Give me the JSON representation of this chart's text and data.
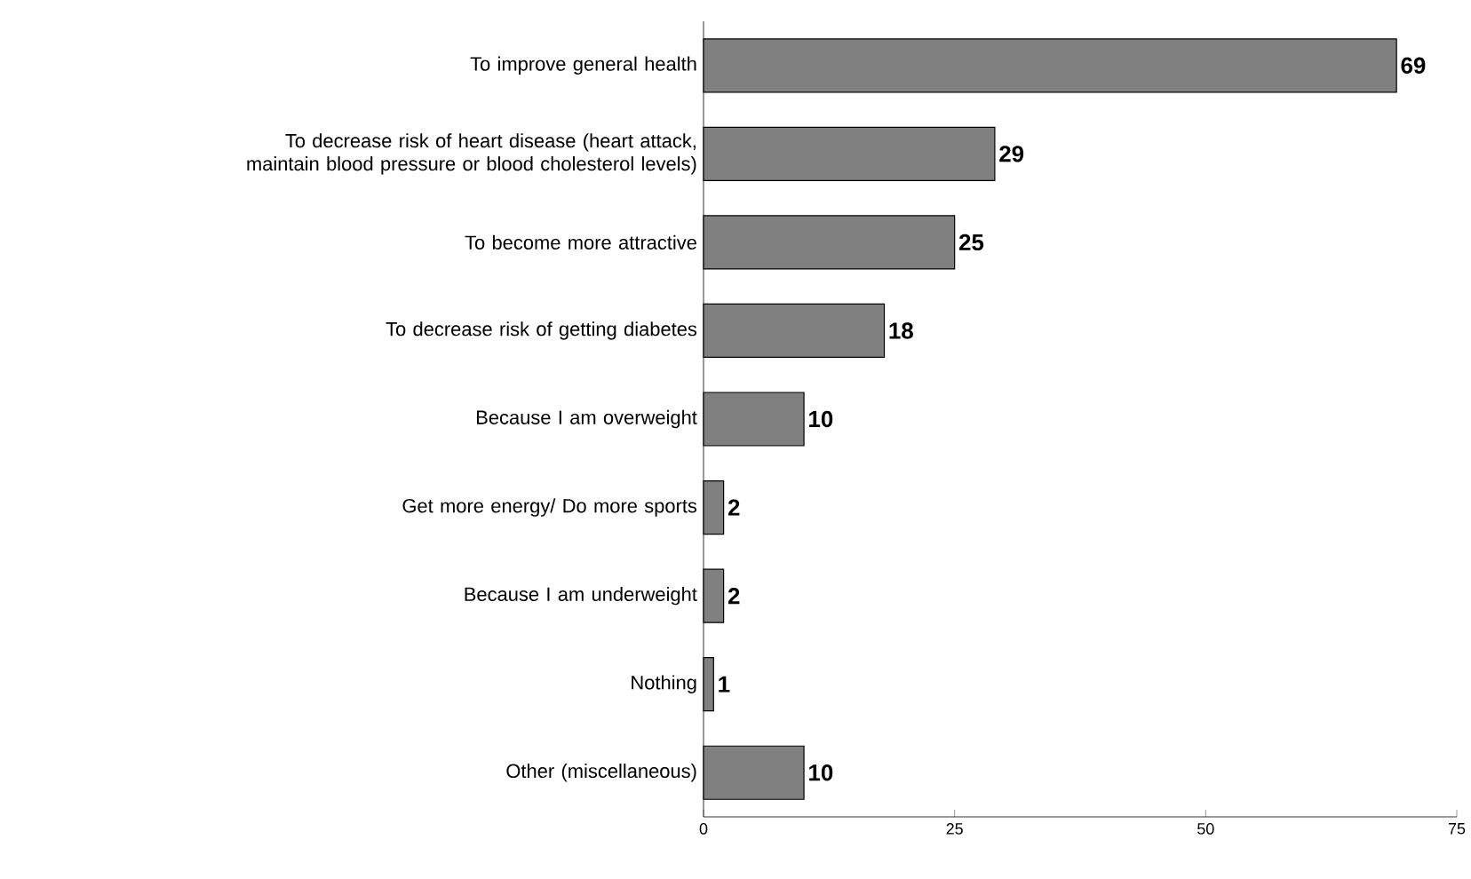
{
  "chart_data": {
    "type": "bar",
    "orientation": "horizontal",
    "categories": [
      "To improve general health",
      "To decrease risk of heart disease (heart attack, maintain blood pressure or blood cholesterol levels)",
      "To become more attractive",
      "To decrease risk of getting diabetes",
      "Because I am overweight",
      "Get more energy/ Do more sports",
      "Because I am underweight",
      "Nothing",
      "Other (miscellaneous)"
    ],
    "values": [
      69,
      29,
      25,
      18,
      10,
      2,
      2,
      1,
      10
    ],
    "color": "#808080",
    "xlim": [
      0,
      75
    ],
    "xticks": [
      0,
      25,
      50,
      75
    ],
    "data_labels": true
  }
}
